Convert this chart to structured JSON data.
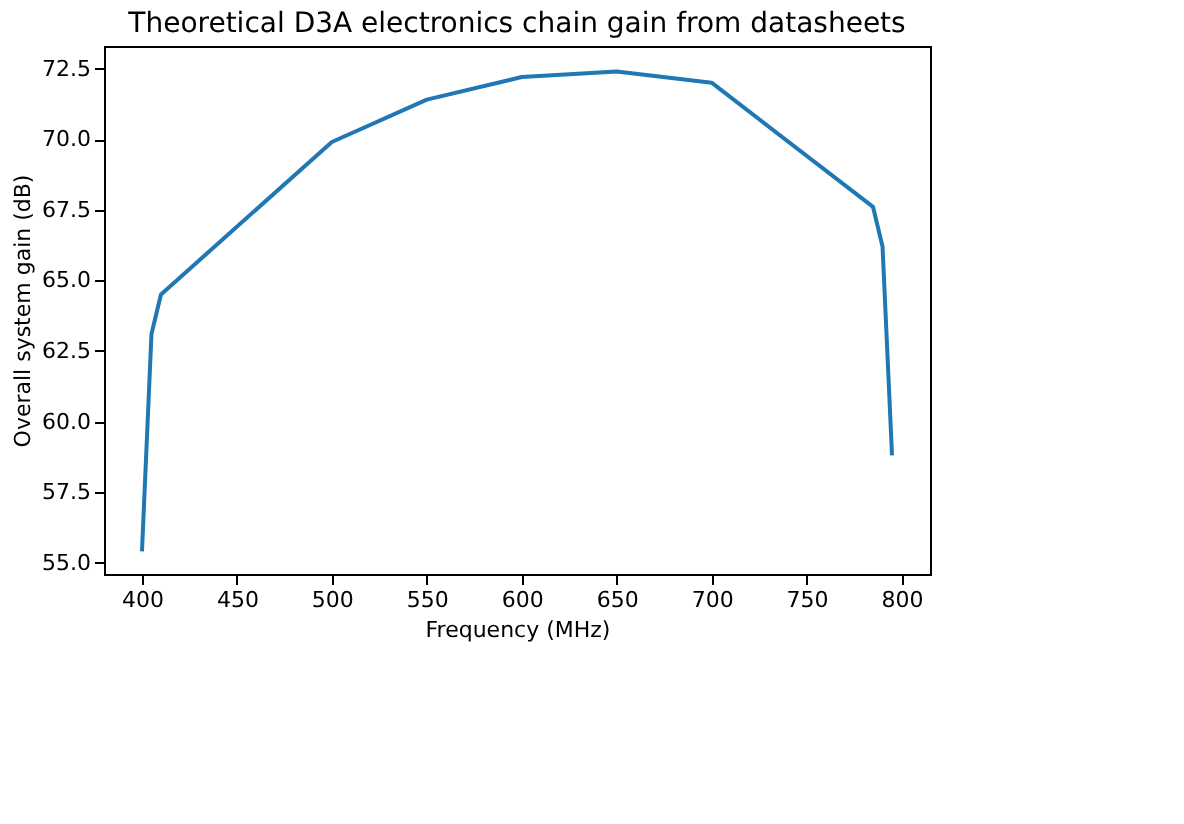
{
  "chart_data": {
    "type": "line",
    "title": "Theoretical D3A electronics chain gain from datasheets",
    "xlabel": "Frequency (MHz)",
    "ylabel": "Overall system gain (dB)",
    "x": [
      400,
      405,
      410,
      500,
      550,
      600,
      650,
      700,
      785,
      790,
      795
    ],
    "series": [
      {
        "color": "#1f77b4",
        "values": [
          55.4,
          63.1,
          64.5,
          69.9,
          71.4,
          72.2,
          72.4,
          72.0,
          67.6,
          66.2,
          58.8
        ]
      }
    ],
    "xlim": [
      380,
      815
    ],
    "ylim": [
      54.6,
      73.3
    ],
    "xticks": [
      400,
      450,
      500,
      550,
      600,
      650,
      700,
      750,
      800
    ],
    "yticks": [
      {
        "value": 55,
        "label": "55.0"
      },
      57.5,
      {
        "value": 60,
        "label": "60.0"
      },
      62.5,
      {
        "value": 65,
        "label": "65.0"
      },
      67.5,
      {
        "value": 70,
        "label": "70.0"
      },
      72.5
    ],
    "grid": false,
    "legend": false,
    "marker": "none",
    "line_style": "solid"
  }
}
